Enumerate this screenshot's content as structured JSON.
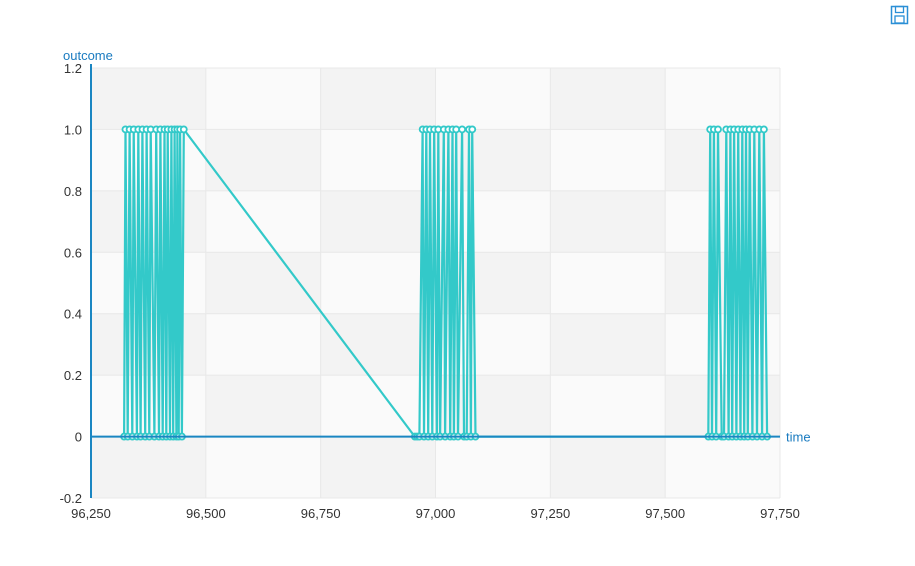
{
  "toolbar": {
    "save_icon": "save-icon"
  },
  "colors": {
    "series": "#33c9c9",
    "axis": "#1a86c2",
    "axis_title": "#1a7bc0",
    "band_dark": "#f3f3f3",
    "band_light": "#fafafa",
    "grid": "#e8e8e8",
    "save_icon": "#2a8fd6"
  },
  "chart_data": {
    "type": "line",
    "xlabel": "time",
    "ylabel": "outcome",
    "xlim": [
      96250,
      97750
    ],
    "ylim": [
      -0.2,
      1.2
    ],
    "x_ticks": [
      96250,
      96500,
      96750,
      97000,
      97250,
      97500,
      97750
    ],
    "x_tick_labels": [
      "96,250",
      "96,500",
      "96,750",
      "97,000",
      "97,250",
      "97,500",
      "97,750"
    ],
    "y_ticks": [
      -0.2,
      0,
      0.2,
      0.4,
      0.6,
      0.8,
      1.0,
      1.2
    ],
    "y_tick_labels": [
      "-0.2",
      "0",
      "0.2",
      "0.4",
      "0.6",
      "0.8",
      "1.0",
      "1.2"
    ],
    "grid": true,
    "series": [
      {
        "x": [
          96322,
          96325,
          96330,
          96334,
          96340,
          96343,
          96350,
          96353,
          96358,
          96362,
          96368,
          96371,
          96377,
          96380,
          96388,
          96392,
          96398,
          96401,
          96406,
          96410,
          96414,
          96417,
          96422,
          96425,
          96429,
          96432,
          96436,
          96438,
          96441,
          96444,
          96448,
          96452,
          96955,
          96960,
          96965,
          96972,
          96975,
          96980,
          96984,
          96988,
          96993,
          96997,
          97003,
          97006,
          97010,
          97018,
          97021,
          97028,
          97032,
          97037,
          97040,
          97045,
          97049,
          97058,
          97062,
          97068,
          97073,
          97077,
          97080,
          97087,
          97594,
          97598,
          97602,
          97606,
          97611,
          97615,
          97623,
          97628,
          97633,
          97638,
          97642,
          97646,
          97650,
          97655,
          97659,
          97664,
          97668,
          97672,
          97676,
          97680,
          97684,
          97690,
          97694,
          97700,
          97705,
          97711,
          97715,
          97722
        ],
        "y": [
          0,
          1,
          0,
          1,
          0,
          1,
          0,
          1,
          0,
          1,
          0,
          1,
          0,
          1,
          0,
          1,
          0,
          1,
          0,
          1,
          0,
          1,
          0,
          1,
          0,
          1,
          0,
          1,
          0,
          1,
          0,
          1,
          0,
          0,
          0,
          1,
          0,
          1,
          0,
          1,
          0,
          1,
          0,
          1,
          0,
          1,
          0,
          1,
          0,
          1,
          0,
          1,
          0,
          1,
          0,
          0,
          1,
          0,
          1,
          0,
          0,
          1,
          0,
          1,
          0,
          1,
          0,
          0,
          1,
          0,
          1,
          0,
          1,
          0,
          1,
          0,
          1,
          0,
          1,
          0,
          1,
          0,
          1,
          0,
          1,
          0,
          1,
          0
        ]
      }
    ]
  }
}
